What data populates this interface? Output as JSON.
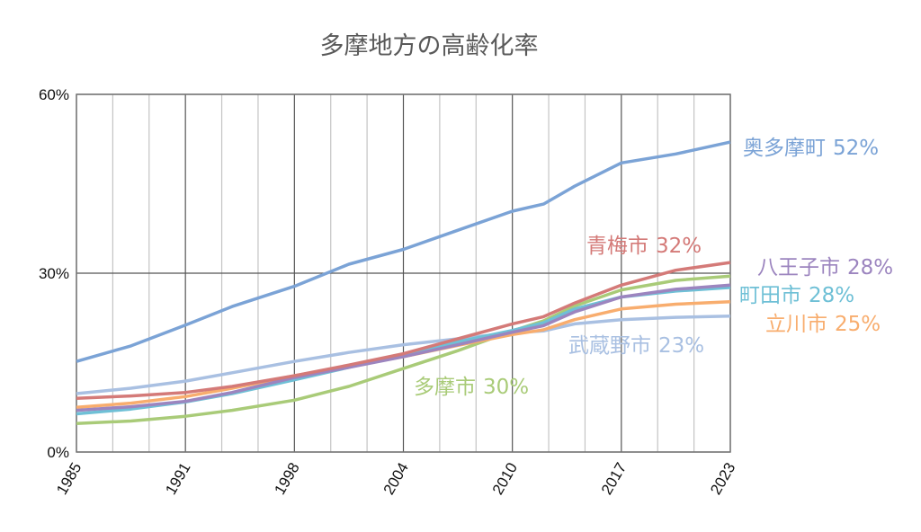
{
  "chart_data": {
    "type": "line",
    "title": "多摩地方の高齢化率",
    "xlabel": "",
    "ylabel": "",
    "x_tick_labels": [
      "1985",
      "1991",
      "1998",
      "2004",
      "2010",
      "2017",
      "2023"
    ],
    "y_tick_labels": [
      "0%",
      "30%",
      "60%"
    ],
    "ylim": [
      0,
      60
    ],
    "y_unit": "%",
    "grid": true,
    "legend": "none (direct labels at line ends)",
    "x": [
      1985,
      1988,
      1991,
      1994,
      1998,
      2001,
      2004,
      2007,
      2010,
      2012,
      2014,
      2017,
      2020,
      2023
    ],
    "series": [
      {
        "name": "奥多摩町",
        "end_label": "52%",
        "color": "#7BA3D6",
        "values": [
          15.2,
          17.8,
          21.3,
          24.4,
          27.8,
          31.5,
          34.0,
          37.2,
          40.4,
          41.6,
          44.6,
          48.5,
          50.0,
          52.0
        ]
      },
      {
        "name": "青梅市",
        "end_label": "32%",
        "color": "#D47A78",
        "values": [
          9.0,
          9.4,
          10.0,
          11.0,
          12.8,
          14.6,
          16.5,
          19.0,
          21.5,
          22.7,
          25.0,
          28.0,
          30.5,
          31.8
        ]
      },
      {
        "name": "八王子市",
        "end_label": "28%",
        "color": "#9C85BF",
        "values": [
          7.0,
          7.6,
          8.5,
          10.0,
          12.5,
          14.2,
          16.0,
          18.0,
          20.1,
          21.2,
          23.5,
          26.0,
          27.3,
          28.0
        ]
      },
      {
        "name": "町田市",
        "end_label": "28%",
        "color": "#6FC0D6",
        "values": [
          6.4,
          7.2,
          8.4,
          9.8,
          12.1,
          14.2,
          16.4,
          18.5,
          20.4,
          21.7,
          24.0,
          26.0,
          27.0,
          27.6
        ]
      },
      {
        "name": "立川市",
        "end_label": "25%",
        "color": "#F8AD6E",
        "values": [
          7.5,
          8.2,
          9.3,
          10.7,
          12.8,
          14.4,
          16.0,
          17.9,
          19.7,
          20.5,
          22.2,
          24.0,
          24.8,
          25.2
        ]
      },
      {
        "name": "武蔵野市",
        "end_label": "23%",
        "color": "#A9C0E2",
        "values": [
          9.8,
          10.7,
          11.9,
          13.3,
          15.2,
          16.7,
          18.0,
          19.0,
          20.0,
          20.3,
          21.5,
          22.2,
          22.6,
          22.8
        ]
      },
      {
        "name": "多摩市",
        "end_label": "30%",
        "color": "#A9CB78",
        "values": [
          4.8,
          5.2,
          6.0,
          7.0,
          8.7,
          11.0,
          14.0,
          17.0,
          20.3,
          22.0,
          24.5,
          27.2,
          28.8,
          29.5
        ]
      }
    ]
  }
}
